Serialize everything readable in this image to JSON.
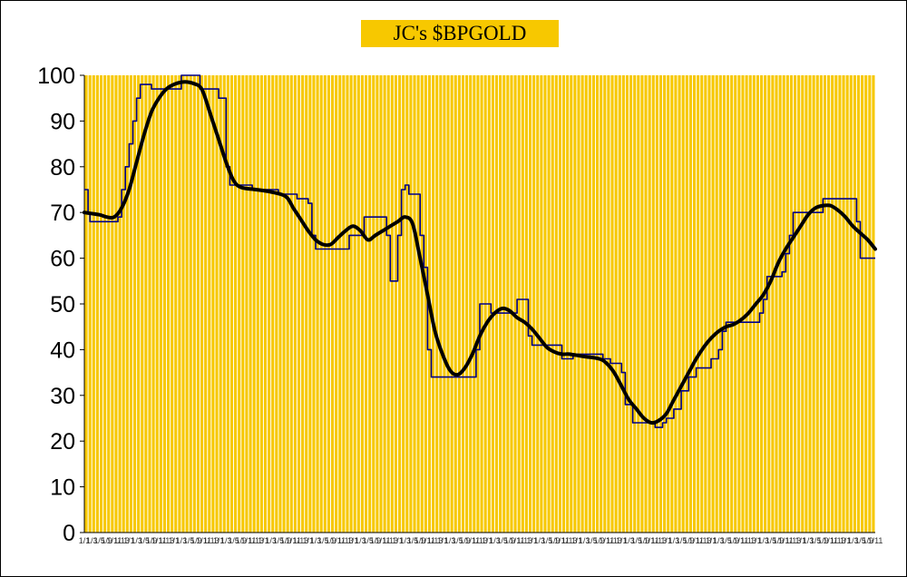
{
  "chart_data": {
    "type": "line",
    "title": "JC's $BPGOLD",
    "xlabel": "",
    "ylabel": "",
    "ylim": [
      0,
      100
    ],
    "yticks": [
      0,
      10,
      20,
      30,
      40,
      50,
      60,
      70,
      80,
      90,
      100
    ],
    "grid": true,
    "legend": "none",
    "x": [
      "1/1",
      "1/3",
      "1/5",
      "1/9",
      "1/11",
      "1/13"
    ],
    "series": [
      {
        "color": "#00008b",
        "style": "step",
        "points": [
          [
            0,
            75
          ],
          [
            1,
            70
          ],
          [
            1.5,
            68
          ],
          [
            8,
            68
          ],
          [
            9,
            69
          ],
          [
            10,
            75
          ],
          [
            11,
            80
          ],
          [
            12,
            85
          ],
          [
            13,
            90
          ],
          [
            14,
            95
          ],
          [
            15,
            98
          ],
          [
            18,
            97
          ],
          [
            26,
            100
          ],
          [
            30,
            100
          ],
          [
            31,
            97
          ],
          [
            35,
            97
          ],
          [
            36,
            95
          ],
          [
            38,
            80
          ],
          [
            39,
            76
          ],
          [
            45,
            75
          ],
          [
            52,
            74
          ],
          [
            57,
            73
          ],
          [
            60,
            72
          ],
          [
            61,
            65
          ],
          [
            62,
            62
          ],
          [
            70,
            62
          ],
          [
            71,
            65
          ],
          [
            74,
            65
          ],
          [
            75,
            69
          ],
          [
            80,
            69
          ],
          [
            81,
            65
          ],
          [
            82,
            55
          ],
          [
            83,
            55
          ],
          [
            84,
            65
          ],
          [
            85,
            75
          ],
          [
            86,
            76
          ],
          [
            87,
            74
          ],
          [
            89,
            74
          ],
          [
            90,
            65
          ],
          [
            91,
            58
          ],
          [
            92,
            40
          ],
          [
            93,
            34
          ],
          [
            103,
            34
          ],
          [
            105,
            40
          ],
          [
            106,
            50
          ],
          [
            108,
            50
          ],
          [
            109,
            48
          ],
          [
            115,
            48
          ],
          [
            116,
            51
          ],
          [
            118,
            51
          ],
          [
            119,
            43
          ],
          [
            120,
            41
          ],
          [
            127,
            41
          ],
          [
            128,
            38
          ],
          [
            130,
            38
          ],
          [
            131,
            39
          ],
          [
            138,
            39
          ],
          [
            139,
            38
          ],
          [
            141,
            37
          ],
          [
            144,
            35
          ],
          [
            145,
            28
          ],
          [
            147,
            24
          ],
          [
            152,
            24
          ],
          [
            153,
            23
          ],
          [
            155,
            24
          ],
          [
            156,
            25
          ],
          [
            158,
            27
          ],
          [
            160,
            31
          ],
          [
            162,
            34
          ],
          [
            164,
            36
          ],
          [
            166,
            36
          ],
          [
            168,
            38
          ],
          [
            170,
            40
          ],
          [
            171,
            44
          ],
          [
            172,
            46
          ],
          [
            180,
            46
          ],
          [
            181,
            48
          ],
          [
            182,
            51
          ],
          [
            183,
            56
          ],
          [
            186,
            56
          ],
          [
            187,
            57
          ],
          [
            188,
            61
          ],
          [
            189,
            65
          ],
          [
            190,
            70
          ],
          [
            197,
            70
          ],
          [
            198,
            73
          ],
          [
            206,
            73
          ],
          [
            207,
            68
          ],
          [
            208,
            60
          ],
          [
            212,
            60
          ]
        ]
      },
      {
        "color": "#000000",
        "style": "smooth",
        "points": [
          [
            0,
            70
          ],
          [
            4,
            69.5
          ],
          [
            6,
            69
          ],
          [
            8,
            69
          ],
          [
            10,
            71
          ],
          [
            12,
            75
          ],
          [
            14,
            81
          ],
          [
            16,
            87
          ],
          [
            18,
            92
          ],
          [
            20,
            95
          ],
          [
            22,
            97
          ],
          [
            24,
            98
          ],
          [
            26,
            98.5
          ],
          [
            28,
            98.5
          ],
          [
            30,
            98
          ],
          [
            31,
            97.5
          ],
          [
            32,
            96
          ],
          [
            34,
            91
          ],
          [
            36,
            86
          ],
          [
            38,
            81
          ],
          [
            40,
            77
          ],
          [
            42,
            75.5
          ],
          [
            46,
            75
          ],
          [
            50,
            74.5
          ],
          [
            54,
            73.5
          ],
          [
            56,
            71
          ],
          [
            58,
            68.5
          ],
          [
            60,
            66
          ],
          [
            62,
            64
          ],
          [
            64,
            63
          ],
          [
            66,
            63
          ],
          [
            68,
            64.5
          ],
          [
            70,
            66
          ],
          [
            72,
            67
          ],
          [
            74,
            66
          ],
          [
            76,
            64
          ],
          [
            78,
            65
          ],
          [
            80,
            66
          ],
          [
            82,
            67
          ],
          [
            84,
            68
          ],
          [
            86,
            69
          ],
          [
            88,
            67.5
          ],
          [
            90,
            60
          ],
          [
            92,
            52
          ],
          [
            94,
            44
          ],
          [
            96,
            39
          ],
          [
            98,
            35.5
          ],
          [
            100,
            34.5
          ],
          [
            102,
            36
          ],
          [
            104,
            39
          ],
          [
            106,
            43
          ],
          [
            108,
            46
          ],
          [
            110,
            48
          ],
          [
            112,
            49
          ],
          [
            114,
            48.5
          ],
          [
            116,
            47
          ],
          [
            118,
            46
          ],
          [
            120,
            44.5
          ],
          [
            122,
            42.5
          ],
          [
            124,
            40.5
          ],
          [
            126,
            39.5
          ],
          [
            128,
            39
          ],
          [
            130,
            39
          ],
          [
            134,
            38.5
          ],
          [
            138,
            38
          ],
          [
            140,
            37
          ],
          [
            142,
            35
          ],
          [
            144,
            32
          ],
          [
            146,
            29
          ],
          [
            148,
            27
          ],
          [
            150,
            25
          ],
          [
            152,
            24
          ],
          [
            154,
            24.5
          ],
          [
            156,
            26
          ],
          [
            158,
            29
          ],
          [
            160,
            32
          ],
          [
            162,
            35
          ],
          [
            164,
            38
          ],
          [
            166,
            40.5
          ],
          [
            168,
            42.5
          ],
          [
            170,
            44
          ],
          [
            172,
            45
          ],
          [
            174,
            45.5
          ],
          [
            176,
            46.5
          ],
          [
            178,
            48
          ],
          [
            180,
            50
          ],
          [
            182,
            52
          ],
          [
            184,
            55
          ],
          [
            186,
            59
          ],
          [
            188,
            62
          ],
          [
            190,
            64.5
          ],
          [
            192,
            67
          ],
          [
            194,
            69.5
          ],
          [
            196,
            71
          ],
          [
            198,
            71.5
          ],
          [
            200,
            71.5
          ],
          [
            202,
            70.5
          ],
          [
            204,
            69
          ],
          [
            206,
            67
          ],
          [
            208,
            65.5
          ],
          [
            210,
            64
          ],
          [
            212,
            62
          ]
        ]
      }
    ]
  }
}
